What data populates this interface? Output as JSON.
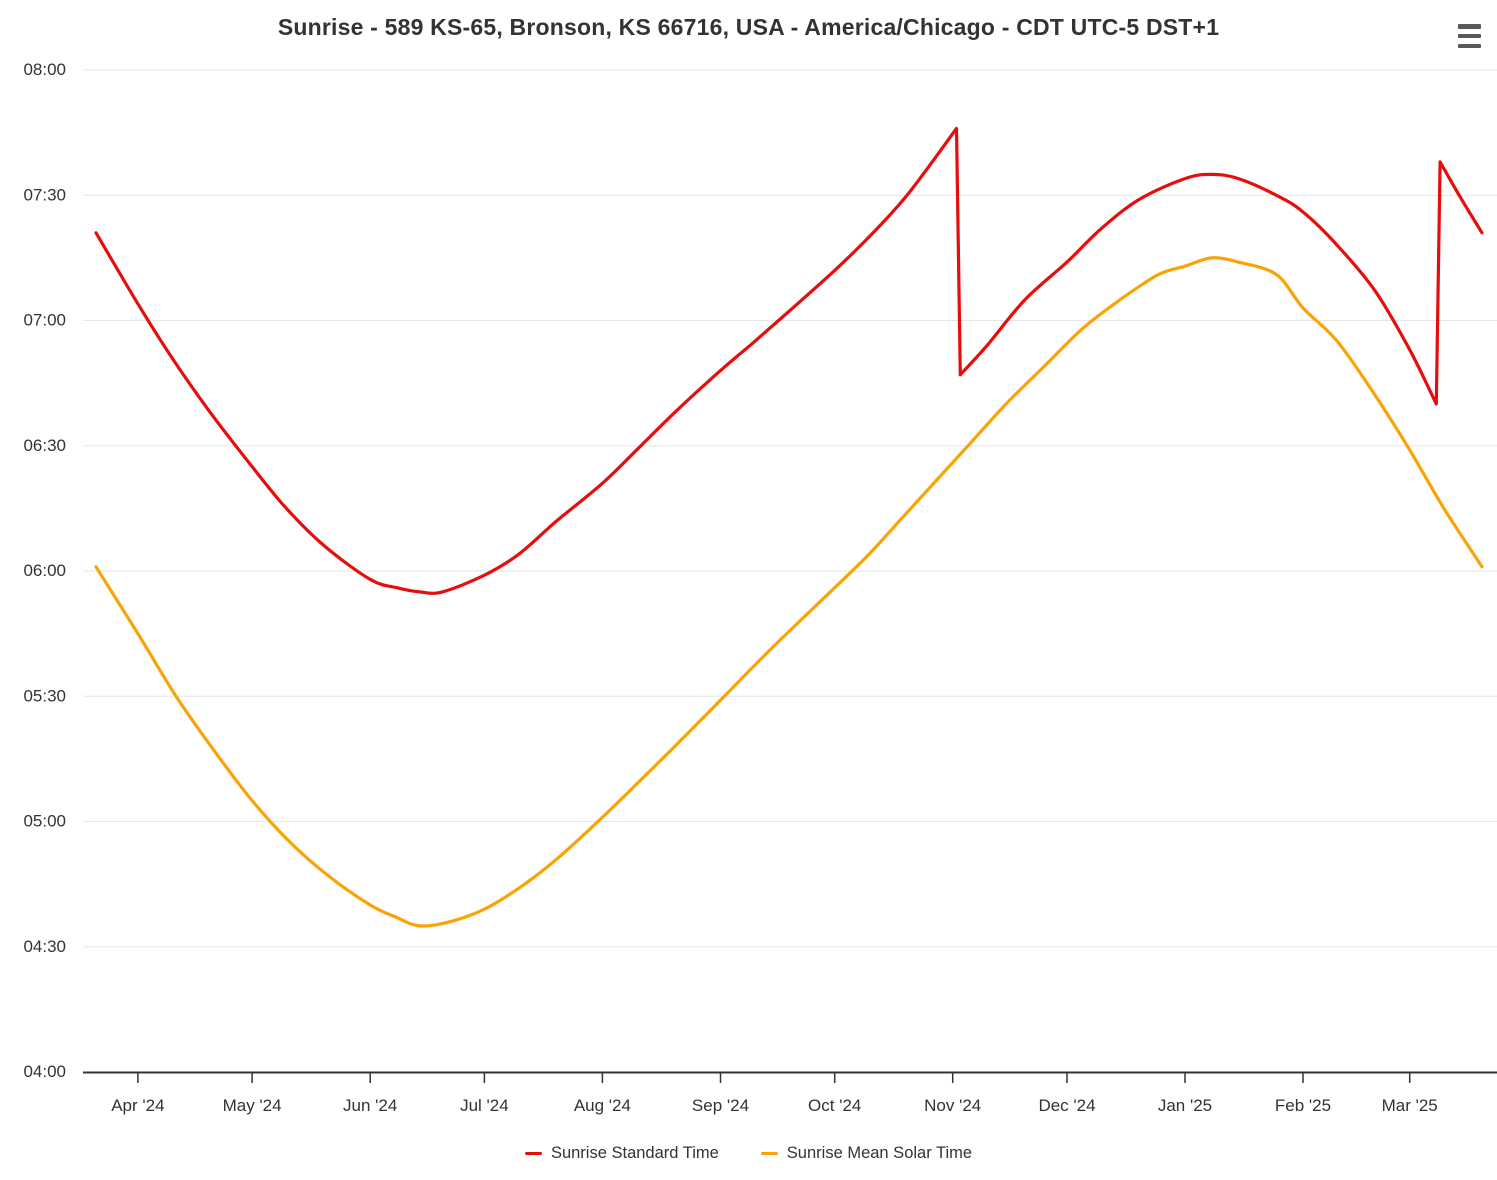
{
  "chart_data": {
    "type": "line",
    "title": "Sunrise - 589 KS-65, Bronson, KS 66716, USA - America/Chicago - CDT UTC-5 DST+1",
    "grid": true,
    "legend_position": "bottom",
    "x_axis": {
      "type": "datetime",
      "range": [
        "2024-03-21",
        "2025-03-20"
      ],
      "ticks": [
        {
          "label": "Apr '24",
          "date": "2024-04-01"
        },
        {
          "label": "May '24",
          "date": "2024-05-01"
        },
        {
          "label": "Jun '24",
          "date": "2024-06-01"
        },
        {
          "label": "Jul '24",
          "date": "2024-07-01"
        },
        {
          "label": "Aug '24",
          "date": "2024-08-01"
        },
        {
          "label": "Sep '24",
          "date": "2024-09-01"
        },
        {
          "label": "Oct '24",
          "date": "2024-10-01"
        },
        {
          "label": "Nov '24",
          "date": "2024-11-01"
        },
        {
          "label": "Dec '24",
          "date": "2024-12-01"
        },
        {
          "label": "Jan '25",
          "date": "2025-01-01"
        },
        {
          "label": "Feb '25",
          "date": "2025-02-01"
        },
        {
          "label": "Mar '25",
          "date": "2025-03-01"
        }
      ]
    },
    "y_axis": {
      "unit": "time of day",
      "range": [
        "04:00",
        "08:00"
      ],
      "tick_labels": [
        "08:00",
        "07:30",
        "07:00",
        "06:30",
        "06:00",
        "05:30",
        "05:00",
        "04:30",
        "04:00"
      ]
    },
    "series": [
      {
        "name": "Sunrise Standard Time",
        "color": "#e60d0d",
        "note": "clock time with DST jumps on 2024-11-03 and 2025-03-09",
        "segments": [
          [
            [
              "2024-03-21",
              "07:21"
            ],
            [
              "2024-04-01",
              "07:04"
            ],
            [
              "2024-04-10",
              "06:51"
            ],
            [
              "2024-04-20",
              "06:38"
            ],
            [
              "2024-05-01",
              "06:25"
            ],
            [
              "2024-05-10",
              "06:15"
            ],
            [
              "2024-05-20",
              "06:06"
            ],
            [
              "2024-06-01",
              "05:58"
            ],
            [
              "2024-06-08",
              "05:56"
            ],
            [
              "2024-06-14",
              "05:55"
            ],
            [
              "2024-06-20",
              "05:55"
            ],
            [
              "2024-07-01",
              "05:59"
            ],
            [
              "2024-07-10",
              "06:04"
            ],
            [
              "2024-07-20",
              "06:12"
            ],
            [
              "2024-08-01",
              "06:21"
            ],
            [
              "2024-08-10",
              "06:29"
            ],
            [
              "2024-08-20",
              "06:38"
            ],
            [
              "2024-09-01",
              "06:48"
            ],
            [
              "2024-09-10",
              "06:55"
            ],
            [
              "2024-09-20",
              "07:03"
            ],
            [
              "2024-10-01",
              "07:12"
            ],
            [
              "2024-10-10",
              "07:20"
            ],
            [
              "2024-10-20",
              "07:30"
            ],
            [
              "2024-11-02",
              "07:46"
            ]
          ],
          [
            [
              "2024-11-03",
              "06:47"
            ],
            [
              "2024-11-10",
              "06:54"
            ],
            [
              "2024-11-20",
              "07:05"
            ],
            [
              "2024-12-01",
              "07:14"
            ],
            [
              "2024-12-10",
              "07:22"
            ],
            [
              "2024-12-20",
              "07:29"
            ],
            [
              "2025-01-01",
              "07:34"
            ],
            [
              "2025-01-08",
              "07:35"
            ],
            [
              "2025-01-15",
              "07:34"
            ],
            [
              "2025-01-25",
              "07:30"
            ],
            [
              "2025-02-01",
              "07:26"
            ],
            [
              "2025-02-10",
              "07:18"
            ],
            [
              "2025-02-20",
              "07:07"
            ],
            [
              "2025-03-01",
              "06:53"
            ],
            [
              "2025-03-08",
              "06:40"
            ]
          ],
          [
            [
              "2025-03-09",
              "07:38"
            ],
            [
              "2025-03-14",
              "07:30"
            ],
            [
              "2025-03-20",
              "07:21"
            ]
          ]
        ]
      },
      {
        "name": "Sunrise Mean Solar Time",
        "color": "#faa307",
        "note": "smooth curve, no DST jumps",
        "segments": [
          [
            [
              "2024-03-21",
              "06:01"
            ],
            [
              "2024-04-01",
              "05:45"
            ],
            [
              "2024-04-11",
              "05:30"
            ],
            [
              "2024-04-21",
              "05:17"
            ],
            [
              "2024-05-01",
              "05:05"
            ],
            [
              "2024-05-11",
              "04:55"
            ],
            [
              "2024-05-21",
              "04:47"
            ],
            [
              "2024-06-01",
              "04:40"
            ],
            [
              "2024-06-08",
              "04:37"
            ],
            [
              "2024-06-14",
              "04:35"
            ],
            [
              "2024-06-22",
              "04:36"
            ],
            [
              "2024-07-01",
              "04:39"
            ],
            [
              "2024-07-10",
              "04:44"
            ],
            [
              "2024-07-20",
              "04:51"
            ],
            [
              "2024-08-01",
              "05:01"
            ],
            [
              "2024-08-10",
              "05:09"
            ],
            [
              "2024-08-20",
              "05:18"
            ],
            [
              "2024-09-02",
              "05:30"
            ],
            [
              "2024-09-15",
              "05:42"
            ],
            [
              "2024-10-01",
              "05:56"
            ],
            [
              "2024-10-10",
              "06:04"
            ],
            [
              "2024-10-20",
              "06:14"
            ],
            [
              "2024-11-05",
              "06:30"
            ],
            [
              "2024-11-15",
              "06:40"
            ],
            [
              "2024-11-25",
              "06:49"
            ],
            [
              "2024-12-05",
              "06:58"
            ],
            [
              "2024-12-15",
              "07:05"
            ],
            [
              "2024-12-25",
              "07:11"
            ],
            [
              "2025-01-01",
              "07:13"
            ],
            [
              "2025-01-08",
              "07:15"
            ],
            [
              "2025-01-15",
              "07:14"
            ],
            [
              "2025-01-25",
              "07:11"
            ],
            [
              "2025-02-01",
              "07:03"
            ],
            [
              "2025-02-10",
              "06:55"
            ],
            [
              "2025-02-20",
              "06:42"
            ],
            [
              "2025-03-01",
              "06:29"
            ],
            [
              "2025-03-10",
              "06:15"
            ],
            [
              "2025-03-20",
              "06:01"
            ]
          ]
        ]
      }
    ],
    "colors": {
      "grid": "#e6e6e6",
      "axis": "#333333",
      "text": "#333333",
      "menu_icon": "#595959"
    }
  }
}
